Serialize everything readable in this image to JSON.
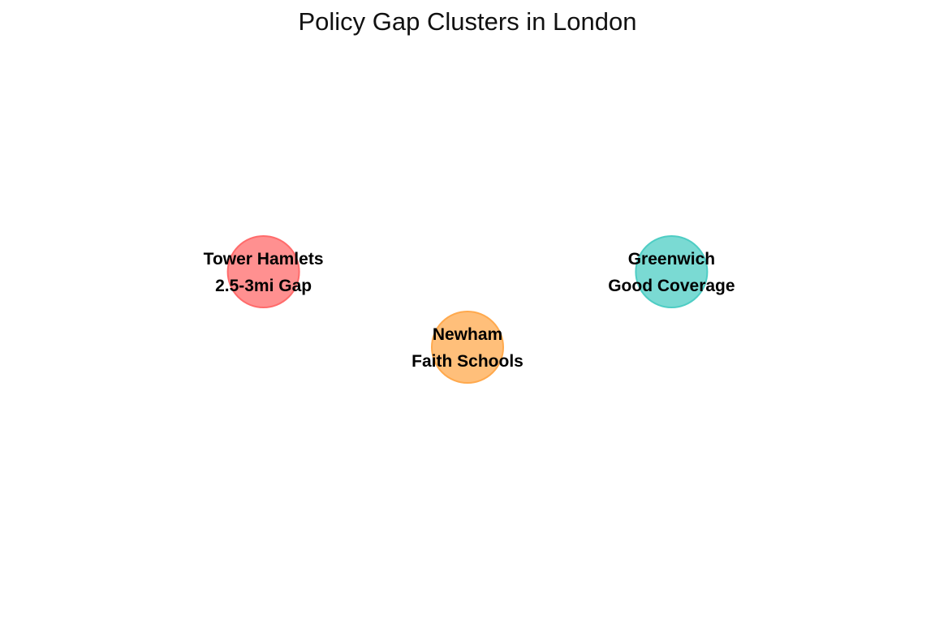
{
  "chart_data": {
    "type": "scatter",
    "title": "Policy Gap Clusters in London",
    "xlabel": "",
    "ylabel": "",
    "xlim": [
      0,
      10
    ],
    "ylim": [
      0,
      10
    ],
    "grid": false,
    "points": [
      {
        "name": "Tower Hamlets",
        "label": "2.5-3mi Gap",
        "x": 2,
        "y": 6,
        "color": "#FF6B6B"
      },
      {
        "name": "Newham",
        "label": "Faith Schools",
        "x": 5,
        "y": 4.5,
        "color": "#FFA94D"
      },
      {
        "name": "Greenwich",
        "label": "Good Coverage",
        "x": 8,
        "y": 6,
        "color": "#4ECDC4"
      }
    ]
  }
}
